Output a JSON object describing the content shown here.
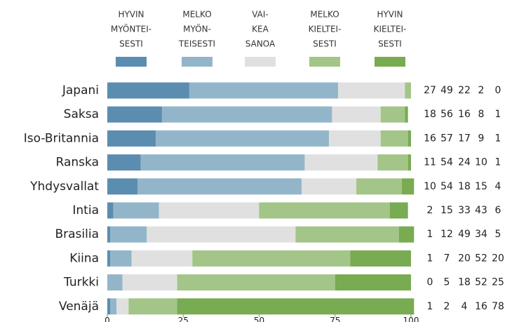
{
  "chart_data": {
    "type": "stacked_barh",
    "categories": [
      "Japani",
      "Saksa",
      "Iso-Britannia",
      "Ranska",
      "Yhdysvallat",
      "Intia",
      "Brasilia",
      "Kiina",
      "Turkki",
      "Venäjä"
    ],
    "series": [
      {
        "name": [
          "HYVIN",
          "MYÖNTEI-",
          "SESTI"
        ],
        "color": "#5b8db0",
        "values": [
          27,
          18,
          16,
          11,
          10,
          2,
          1,
          1,
          0,
          1
        ]
      },
      {
        "name": [
          "MELKO",
          "MYÖN-",
          "TEISESTI"
        ],
        "color": "#93b5c9",
        "values": [
          49,
          56,
          57,
          54,
          54,
          15,
          12,
          7,
          5,
          2
        ]
      },
      {
        "name": [
          "VAI-",
          "KEA",
          "SANOA"
        ],
        "color": "#e0e0e0",
        "values": [
          22,
          16,
          17,
          24,
          18,
          33,
          49,
          20,
          18,
          4
        ]
      },
      {
        "name": [
          "MELKO",
          "KIELTEI-",
          "SESTI"
        ],
        "color": "#a3c587",
        "values": [
          2,
          8,
          9,
          10,
          15,
          43,
          34,
          52,
          52,
          16
        ]
      },
      {
        "name": [
          "HYVIN",
          "KIELTEI-",
          "SESTI"
        ],
        "color": "#78ab52",
        "values": [
          0,
          1,
          1,
          1,
          4,
          6,
          5,
          20,
          25,
          78
        ]
      }
    ],
    "xlim": [
      0,
      100
    ],
    "xticks": [
      0,
      25,
      50,
      75,
      100
    ]
  }
}
